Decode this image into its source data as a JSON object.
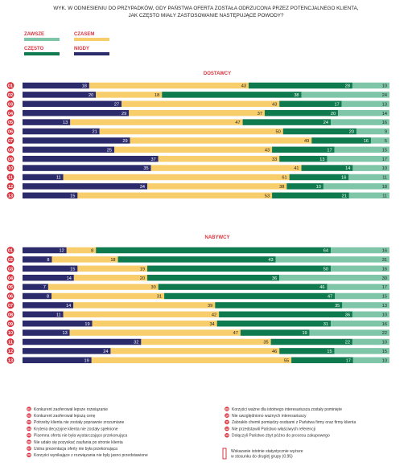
{
  "title_lines": [
    "WYK. W ODNIESIENIU DO PRZYPADKÓW, GDY PAŃSTWA OFERTA ZOSTAŁA ODRZUCONA PRZEZ POTENCJALNEGO KLIENTA,",
    "JAK CZĘSTO MIAŁY ZASTOSOWANIE NASTĘPUJĄCE POWODY?"
  ],
  "legend": [
    {
      "label": "ZAWSZE",
      "color": "#7fc6a8"
    },
    {
      "label": "CZASEM",
      "color": "#f7ce6b"
    },
    {
      "label": "CZĘSTO",
      "color": "#0f7a4e"
    },
    {
      "label": "NIGDY",
      "color": "#2b2a6b"
    }
  ],
  "colors": {
    "nigdy": "#2b2a6b",
    "czasem": "#f7ce6b",
    "czesto": "#0f7a4e",
    "zawsze": "#7fc6a8",
    "accent": "#d9343f"
  },
  "chart_data": {
    "type": "bar",
    "stacked": true,
    "orientation": "horizontal",
    "scale_max": 100,
    "segment_order": [
      "NIGDY",
      "CZASEM",
      "CZĘSTO",
      "ZAWSZE"
    ],
    "groups": [
      {
        "title": "DOSTAWCY",
        "categories": [
          "01",
          "02",
          "03",
          "04",
          "05",
          "06",
          "07",
          "08",
          "09",
          "10",
          "11",
          "12",
          "13"
        ],
        "series": [
          {
            "name": "NIGDY",
            "values": [
              18,
              20,
              27,
              29,
              13,
              21,
              29,
              25,
              37,
              35,
              11,
              34,
              15
            ]
          },
          {
            "name": "CZASEM",
            "values": [
              43,
              18,
              43,
              37,
              47,
              50,
              49,
              43,
              33,
              41,
              61,
              38,
              53
            ]
          },
          {
            "name": "CZĘSTO",
            "values": [
              28,
              38,
              17,
              20,
              24,
              20,
              16,
              17,
              13,
              14,
              16,
              10,
              21
            ]
          },
          {
            "name": "ZAWSZE",
            "values": [
              10,
              24,
              13,
              14,
              16,
              9,
              5,
              15,
              17,
              10,
              11,
              18,
              11
            ]
          }
        ]
      },
      {
        "title": "NABYWCY",
        "categories": [
          "01",
          "02",
          "03",
          "04",
          "05",
          "06",
          "07",
          "08",
          "09",
          "10",
          "11",
          "12",
          "13"
        ],
        "series": [
          {
            "name": "NIGDY",
            "values": [
              12,
              8,
              15,
              14,
              7,
              8,
              14,
              11,
              19,
              13,
              32,
              24,
              19
            ]
          },
          {
            "name": "CZASEM",
            "values": [
              8,
              18,
              19,
              20,
              30,
              31,
              39,
              42,
              34,
              47,
              35,
              46,
              55
            ]
          },
          {
            "name": "CZĘSTO",
            "values": [
              64,
              43,
              50,
              36,
              46,
              47,
              35,
              36,
              31,
              19,
              22,
              15,
              17
            ]
          },
          {
            "name": "ZAWSZE",
            "values": [
              16,
              31,
              16,
              30,
              17,
              15,
              13,
              10,
              16,
              22,
              10,
              15,
              10
            ]
          }
        ]
      }
    ]
  },
  "footnotes_left": [
    {
      "num": "01",
      "text": "Konkurent zaoferował lepsze rozwiązanie"
    },
    {
      "num": "02",
      "text": "Konkurent zaoferował lepszą cenę"
    },
    {
      "num": "03",
      "text": "Potrzeby klienta nie zostały poprawnie zrozumiane"
    },
    {
      "num": "04",
      "text": "Kryteria decyzyjne klienta nie zostały spełnione"
    },
    {
      "num": "05",
      "text": "Pisemna oferta nie była wystarczająco przekonująca"
    },
    {
      "num": "06",
      "text": "Nie udało się pozyskać zaufania po stronie klienta"
    },
    {
      "num": "07",
      "text": "Ustna prezentacja oferty nie była przekonująca"
    },
    {
      "num": "08",
      "text": "Korzyści wynikające z rozwiązania nie były jasno przedstawione"
    }
  ],
  "footnotes_right": [
    {
      "num": "09",
      "text": "Korzyści ważne dla istotnego interesariusza zostały pominięte"
    },
    {
      "num": "10",
      "text": "Nie uwzględniono ważnych interesariuszy"
    },
    {
      "num": "11",
      "text": "Zabrakło chemii pomiędzy osobami z Państwa firmy oraz firmy klienta"
    },
    {
      "num": "12",
      "text": "Nie przedstawili Państwo właściwych referencji"
    },
    {
      "num": "13",
      "text": "Dołączyli Państwo zbyt późno do procesu zakupowego"
    }
  ],
  "significance_note": [
    "Wskazanie istotnie statystycznie wyższe",
    "w stosunku do drugiej grupy (0.95)"
  ]
}
